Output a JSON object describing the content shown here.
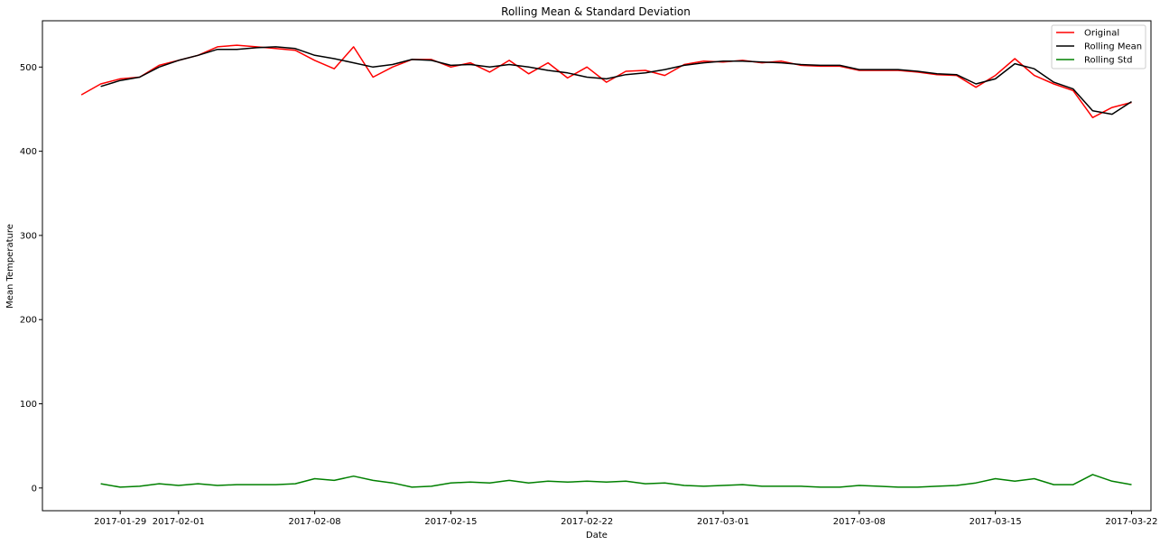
{
  "chart_data": {
    "type": "line",
    "title": "Rolling Mean & Standard Deviation",
    "xlabel": "Date",
    "ylabel": "Mean Temperature",
    "x_ticks": [
      "2017-01-29",
      "2017-02-01",
      "2017-02-08",
      "2017-02-15",
      "2017-02-22",
      "2017-03-01",
      "2017-03-08",
      "2017-03-15",
      "2017-03-22"
    ],
    "y_ticks": [
      0,
      100,
      200,
      300,
      400,
      500
    ],
    "xlim": [
      "2017-01-25",
      "2017-03-23"
    ],
    "ylim": [
      -27,
      555
    ],
    "grid": false,
    "legend_position": "top-right",
    "series": [
      {
        "name": "Original",
        "color": "#ff0000",
        "points": [
          [
            "2017-01-27",
            467
          ],
          [
            "2017-01-28",
            480
          ],
          [
            "2017-01-29",
            486
          ],
          [
            "2017-01-30",
            488
          ],
          [
            "2017-01-31",
            502
          ],
          [
            "2017-02-01",
            508
          ],
          [
            "2017-02-02",
            514
          ],
          [
            "2017-02-03",
            524
          ],
          [
            "2017-02-04",
            526
          ],
          [
            "2017-02-05",
            524
          ],
          [
            "2017-02-06",
            522
          ],
          [
            "2017-02-07",
            520
          ],
          [
            "2017-02-08",
            508
          ],
          [
            "2017-02-09",
            498
          ],
          [
            "2017-02-10",
            524
          ],
          [
            "2017-02-11",
            488
          ],
          [
            "2017-02-12",
            500
          ],
          [
            "2017-02-13",
            509
          ],
          [
            "2017-02-14",
            509
          ],
          [
            "2017-02-15",
            500
          ],
          [
            "2017-02-16",
            505
          ],
          [
            "2017-02-17",
            494
          ],
          [
            "2017-02-18",
            508
          ],
          [
            "2017-02-19",
            492
          ],
          [
            "2017-02-20",
            505
          ],
          [
            "2017-02-21",
            487
          ],
          [
            "2017-02-22",
            500
          ],
          [
            "2017-02-23",
            482
          ],
          [
            "2017-02-24",
            495
          ],
          [
            "2017-02-25",
            496
          ],
          [
            "2017-02-26",
            490
          ],
          [
            "2017-02-27",
            503
          ],
          [
            "2017-02-28",
            507
          ],
          [
            "2017-03-01",
            506
          ],
          [
            "2017-03-02",
            508
          ],
          [
            "2017-03-03",
            505
          ],
          [
            "2017-03-04",
            507
          ],
          [
            "2017-03-05",
            502
          ],
          [
            "2017-03-06",
            501
          ],
          [
            "2017-03-07",
            501
          ],
          [
            "2017-03-08",
            496
          ],
          [
            "2017-03-09",
            496
          ],
          [
            "2017-03-10",
            496
          ],
          [
            "2017-03-11",
            494
          ],
          [
            "2017-03-12",
            491
          ],
          [
            "2017-03-13",
            490
          ],
          [
            "2017-03-14",
            476
          ],
          [
            "2017-03-15",
            490
          ],
          [
            "2017-03-16",
            510
          ],
          [
            "2017-03-17",
            490
          ],
          [
            "2017-03-18",
            480
          ],
          [
            "2017-03-19",
            472
          ],
          [
            "2017-03-20",
            440
          ],
          [
            "2017-03-21",
            452
          ],
          [
            "2017-03-22",
            458
          ]
        ]
      },
      {
        "name": "Rolling Mean",
        "color": "#000000",
        "points": [
          [
            "2017-01-28",
            477
          ],
          [
            "2017-01-29",
            484
          ],
          [
            "2017-01-30",
            488
          ],
          [
            "2017-01-31",
            500
          ],
          [
            "2017-02-01",
            508
          ],
          [
            "2017-02-02",
            514
          ],
          [
            "2017-02-03",
            521
          ],
          [
            "2017-02-04",
            521
          ],
          [
            "2017-02-05",
            523
          ],
          [
            "2017-02-06",
            524
          ],
          [
            "2017-02-07",
            522
          ],
          [
            "2017-02-08",
            514
          ],
          [
            "2017-02-09",
            510
          ],
          [
            "2017-02-10",
            505
          ],
          [
            "2017-02-11",
            500
          ],
          [
            "2017-02-12",
            503
          ],
          [
            "2017-02-13",
            509
          ],
          [
            "2017-02-14",
            508
          ],
          [
            "2017-02-15",
            502
          ],
          [
            "2017-02-16",
            503
          ],
          [
            "2017-02-17",
            500
          ],
          [
            "2017-02-18",
            503
          ],
          [
            "2017-02-19",
            500
          ],
          [
            "2017-02-20",
            496
          ],
          [
            "2017-02-21",
            493
          ],
          [
            "2017-02-22",
            488
          ],
          [
            "2017-02-23",
            486
          ],
          [
            "2017-02-24",
            491
          ],
          [
            "2017-02-25",
            493
          ],
          [
            "2017-02-26",
            497
          ],
          [
            "2017-02-27",
            502
          ],
          [
            "2017-02-28",
            505
          ],
          [
            "2017-03-01",
            507
          ],
          [
            "2017-03-02",
            507
          ],
          [
            "2017-03-03",
            506
          ],
          [
            "2017-03-04",
            505
          ],
          [
            "2017-03-05",
            503
          ],
          [
            "2017-03-06",
            502
          ],
          [
            "2017-03-07",
            502
          ],
          [
            "2017-03-08",
            497
          ],
          [
            "2017-03-09",
            497
          ],
          [
            "2017-03-10",
            497
          ],
          [
            "2017-03-11",
            495
          ],
          [
            "2017-03-12",
            492
          ],
          [
            "2017-03-13",
            491
          ],
          [
            "2017-03-14",
            480
          ],
          [
            "2017-03-15",
            486
          ],
          [
            "2017-03-16",
            504
          ],
          [
            "2017-03-17",
            498
          ],
          [
            "2017-03-18",
            482
          ],
          [
            "2017-03-19",
            474
          ],
          [
            "2017-03-20",
            448
          ],
          [
            "2017-03-21",
            444
          ],
          [
            "2017-03-22",
            459
          ]
        ]
      },
      {
        "name": "Rolling Std",
        "color": "#008000",
        "points": [
          [
            "2017-01-28",
            5
          ],
          [
            "2017-01-29",
            1
          ],
          [
            "2017-01-30",
            2
          ],
          [
            "2017-01-31",
            5
          ],
          [
            "2017-02-01",
            3
          ],
          [
            "2017-02-02",
            5
          ],
          [
            "2017-02-03",
            3
          ],
          [
            "2017-02-04",
            4
          ],
          [
            "2017-02-05",
            4
          ],
          [
            "2017-02-06",
            4
          ],
          [
            "2017-02-07",
            5
          ],
          [
            "2017-02-08",
            11
          ],
          [
            "2017-02-09",
            9
          ],
          [
            "2017-02-10",
            14
          ],
          [
            "2017-02-11",
            9
          ],
          [
            "2017-02-12",
            6
          ],
          [
            "2017-02-13",
            1
          ],
          [
            "2017-02-14",
            2
          ],
          [
            "2017-02-15",
            6
          ],
          [
            "2017-02-16",
            7
          ],
          [
            "2017-02-17",
            6
          ],
          [
            "2017-02-18",
            9
          ],
          [
            "2017-02-19",
            6
          ],
          [
            "2017-02-20",
            8
          ],
          [
            "2017-02-21",
            7
          ],
          [
            "2017-02-22",
            8
          ],
          [
            "2017-02-23",
            7
          ],
          [
            "2017-02-24",
            8
          ],
          [
            "2017-02-25",
            5
          ],
          [
            "2017-02-26",
            6
          ],
          [
            "2017-02-27",
            3
          ],
          [
            "2017-02-28",
            2
          ],
          [
            "2017-03-01",
            3
          ],
          [
            "2017-03-02",
            4
          ],
          [
            "2017-03-03",
            2
          ],
          [
            "2017-03-04",
            2
          ],
          [
            "2017-03-05",
            2
          ],
          [
            "2017-03-06",
            1
          ],
          [
            "2017-03-07",
            1
          ],
          [
            "2017-03-08",
            3
          ],
          [
            "2017-03-09",
            2
          ],
          [
            "2017-03-10",
            1
          ],
          [
            "2017-03-11",
            1
          ],
          [
            "2017-03-12",
            2
          ],
          [
            "2017-03-13",
            3
          ],
          [
            "2017-03-14",
            6
          ],
          [
            "2017-03-15",
            11
          ],
          [
            "2017-03-16",
            8
          ],
          [
            "2017-03-17",
            11
          ],
          [
            "2017-03-18",
            4
          ],
          [
            "2017-03-19",
            4
          ],
          [
            "2017-03-20",
            16
          ],
          [
            "2017-03-21",
            8
          ],
          [
            "2017-03-22",
            4
          ]
        ]
      }
    ]
  }
}
